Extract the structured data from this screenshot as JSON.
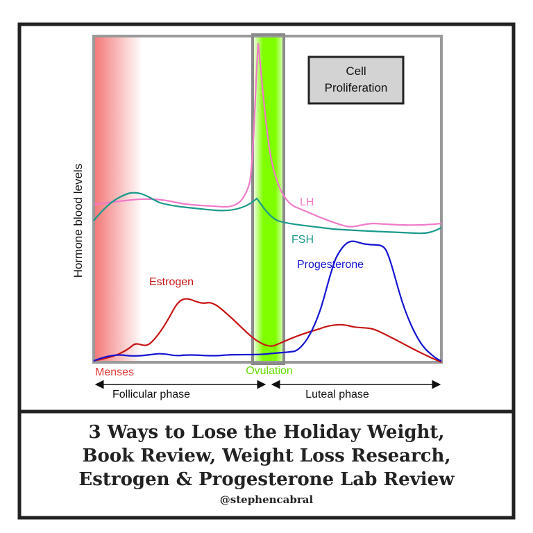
{
  "diagram": {
    "y_axis_label": "Hormone blood levels",
    "box_label_line1": "Cell",
    "box_label_line2": "Proliferation",
    "series": {
      "lh": {
        "name": "LH",
        "color": "#f07ac8"
      },
      "fsh": {
        "name": "FSH",
        "color": "#1a9a8a"
      },
      "estrogen": {
        "name": "Estrogen",
        "color": "#c81414"
      },
      "progesterone": {
        "name": "Progesterone",
        "color": "#1414d2"
      }
    },
    "menses_label": "Menses",
    "menses_color": "#f04848",
    "ovulation_label": "Ovulation",
    "ovulation_color": "#7fff00",
    "phase_left": "Follicular phase",
    "phase_right": "Luteal phase"
  },
  "caption": {
    "lines": [
      "3 Ways to Lose the Holiday Weight,",
      "Book Review, Weight Loss Research,",
      "Estrogen & Progesterone Lab Review"
    ],
    "handle": "@stephencabral"
  }
}
